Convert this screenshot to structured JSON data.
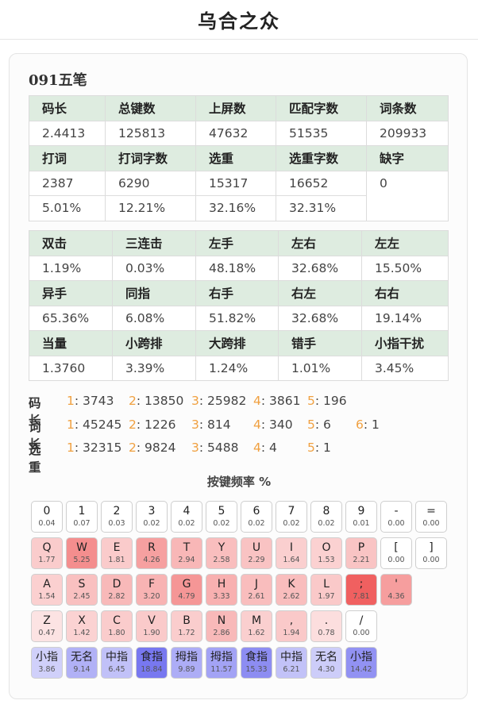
{
  "header": {
    "title": "乌合之众"
  },
  "scheme": {
    "name": "091五笔"
  },
  "table1": {
    "rows": [
      [
        "码长",
        "总键数",
        "上屏数",
        "匹配字数",
        "词条数"
      ],
      [
        "2.4413",
        "125813",
        "47632",
        "51535",
        "209933"
      ],
      [
        "打词",
        "打词字数",
        "选重",
        "选重字数",
        "缺字"
      ],
      [
        "2387",
        "6290",
        "15317",
        "16652",
        "0"
      ],
      [
        "5.01%",
        "12.21%",
        "32.16%",
        "32.31%",
        ""
      ]
    ]
  },
  "table2": {
    "rows": [
      [
        "双击",
        "三连击",
        "左手",
        "左右",
        "左左"
      ],
      [
        "1.19%",
        "0.03%",
        "48.18%",
        "32.68%",
        "15.50%"
      ],
      [
        "异手",
        "同指",
        "右手",
        "右左",
        "右右"
      ],
      [
        "65.36%",
        "6.08%",
        "51.82%",
        "32.68%",
        "19.14%"
      ],
      [
        "当量",
        "小跨排",
        "大跨排",
        "错手",
        "小指干扰"
      ],
      [
        "1.3760",
        "3.39%",
        "1.24%",
        "1.01%",
        "3.45%"
      ]
    ]
  },
  "distributions": [
    {
      "label": "码长",
      "items": [
        {
          "key": "1",
          "value": ": 3743"
        },
        {
          "key": "2",
          "value": ": 13850"
        },
        {
          "key": "3",
          "value": ": 25982"
        },
        {
          "key": "4",
          "value": ": 3861"
        },
        {
          "key": "5",
          "value": ": 196"
        }
      ]
    },
    {
      "label": "词长",
      "items": [
        {
          "key": "1",
          "value": ": 45245"
        },
        {
          "key": "2",
          "value": ": 1226"
        },
        {
          "key": "3",
          "value": ": 814"
        },
        {
          "key": "4",
          "value": ": 340"
        },
        {
          "key": "5",
          "value": ": 6"
        },
        {
          "key": "6",
          "value": ": 1"
        }
      ]
    },
    {
      "label": "选重",
      "items": [
        {
          "key": "1",
          "value": ": 32315"
        },
        {
          "key": "2",
          "value": ": 9824"
        },
        {
          "key": "3",
          "value": ": 5488"
        },
        {
          "key": "4",
          "value": ": 4"
        },
        {
          "key": "5",
          "value": ": 1"
        }
      ]
    }
  ],
  "key_frequency": {
    "title": "按键频率 %",
    "rows": [
      [
        {
          "label": "0",
          "value": "0.04"
        },
        {
          "label": "1",
          "value": "0.07"
        },
        {
          "label": "2",
          "value": "0.03"
        },
        {
          "label": "3",
          "value": "0.02"
        },
        {
          "label": "4",
          "value": "0.02"
        },
        {
          "label": "5",
          "value": "0.02"
        },
        {
          "label": "6",
          "value": "0.02"
        },
        {
          "label": "7",
          "value": "0.02"
        },
        {
          "label": "8",
          "value": "0.02"
        },
        {
          "label": "9",
          "value": "0.01"
        },
        {
          "label": "-",
          "value": "0.00"
        },
        {
          "label": "=",
          "value": "0.00"
        }
      ],
      [
        {
          "label": "Q",
          "value": "1.77"
        },
        {
          "label": "W",
          "value": "5.25"
        },
        {
          "label": "E",
          "value": "1.81"
        },
        {
          "label": "R",
          "value": "4.26"
        },
        {
          "label": "T",
          "value": "2.94"
        },
        {
          "label": "Y",
          "value": "2.58"
        },
        {
          "label": "U",
          "value": "2.29"
        },
        {
          "label": "I",
          "value": "1.64"
        },
        {
          "label": "O",
          "value": "1.53"
        },
        {
          "label": "P",
          "value": "2.21"
        },
        {
          "label": "[",
          "value": "0.00"
        },
        {
          "label": "]",
          "value": "0.00"
        }
      ],
      [
        {
          "label": "A",
          "value": "1.54"
        },
        {
          "label": "S",
          "value": "2.45"
        },
        {
          "label": "D",
          "value": "2.82"
        },
        {
          "label": "F",
          "value": "3.20"
        },
        {
          "label": "G",
          "value": "4.79"
        },
        {
          "label": "H",
          "value": "3.33"
        },
        {
          "label": "J",
          "value": "2.61"
        },
        {
          "label": "K",
          "value": "2.62"
        },
        {
          "label": "L",
          "value": "1.97"
        },
        {
          "label": ";",
          "value": "7.81"
        },
        {
          "label": "'",
          "value": "4.36"
        }
      ],
      [
        {
          "label": "Z",
          "value": "0.47"
        },
        {
          "label": "X",
          "value": "1.42"
        },
        {
          "label": "C",
          "value": "1.80"
        },
        {
          "label": "V",
          "value": "1.90"
        },
        {
          "label": "B",
          "value": "1.72"
        },
        {
          "label": "N",
          "value": "2.86"
        },
        {
          "label": "M",
          "value": "1.62"
        },
        {
          "label": ",",
          "value": "1.94"
        },
        {
          "label": ".",
          "value": "0.78"
        },
        {
          "label": "/",
          "value": "0.00"
        }
      ],
      [
        {
          "label": "小指",
          "value": "3.86"
        },
        {
          "label": "无名",
          "value": "9.14"
        },
        {
          "label": "中指",
          "value": "6.45"
        },
        {
          "label": "食指",
          "value": "18.84"
        },
        {
          "label": "拇指",
          "value": "9.89"
        },
        {
          "label": "拇指",
          "value": "11.57"
        },
        {
          "label": "食指",
          "value": "15.33"
        },
        {
          "label": "中指",
          "value": "6.21"
        },
        {
          "label": "无名",
          "value": "4.30"
        },
        {
          "label": "小指",
          "value": "14.42"
        }
      ]
    ]
  },
  "colors": {
    "header_cell_bg": "#deece0",
    "key_heat": "#f06060",
    "finger_heat": "#7878f0",
    "dist_key": "#f0a040"
  }
}
